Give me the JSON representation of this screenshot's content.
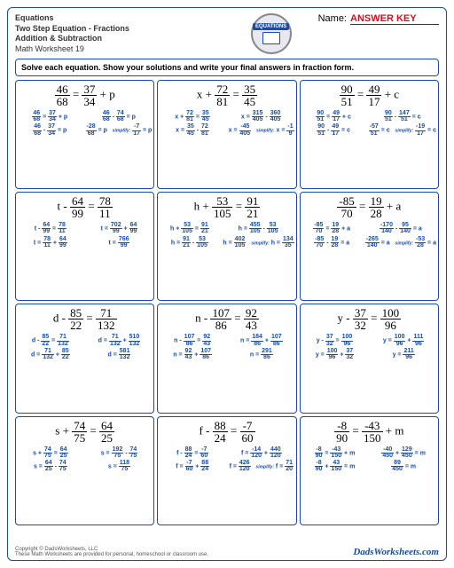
{
  "header": {
    "line1": "Equations",
    "line2": "Two Step Equation - Fractions",
    "line3": "Addition & Subtraction",
    "line4": "Math Worksheet 19",
    "logo_text": "EQUATIONS",
    "name_label": "Name:",
    "answer_key": "ANSWER KEY"
  },
  "instruction": "Solve each equation.  Show your solutions and write your final answers in fraction form.",
  "cells": [
    {
      "prob_html": "<span class='frac'><span class='n'>46</span><span class='d'>68</span></span> = <span class='frac'><span class='n'>37</span><span class='d'>34</span></span> + p",
      "steps": [
        "<span class='sfrac'><span class='n'>46</span><span class='d'>68</span></span> = <span class='sfrac'><span class='n'>37</span><span class='d'>34</span></span> + p",
        "<span class='sfrac'><span class='n'>46</span><span class='d'>68</span></span> - <span class='sfrac'><span class='n'>74</span><span class='d'>68</span></span> = p",
        "<span class='sfrac'><span class='n'>46</span><span class='d'>68</span></span> - <span class='sfrac'><span class='n'>37</span><span class='d'>34</span></span> = p",
        "<span class='sfrac'><span class='n'>-28</span><span class='d'>68</span></span> = p &nbsp; <span class='simplify'>simplify:</span> <span class='sfrac'><span class='n'>-7</span><span class='d'>17</span></span> = p"
      ]
    },
    {
      "prob_html": "x + <span class='frac'><span class='n'>72</span><span class='d'>81</span></span> = <span class='frac'><span class='n'>35</span><span class='d'>45</span></span>",
      "steps": [
        "x + <span class='sfrac'><span class='n'>72</span><span class='d'>81</span></span> = <span class='sfrac'><span class='n'>35</span><span class='d'>45</span></span>",
        "x = <span class='sfrac'><span class='n'>315</span><span class='d'>405</span></span> - <span class='sfrac'><span class='n'>360</span><span class='d'>405</span></span>",
        "x = <span class='sfrac'><span class='n'>35</span><span class='d'>45</span></span> - <span class='sfrac'><span class='n'>72</span><span class='d'>81</span></span>",
        "x = <span class='sfrac'><span class='n'>-45</span><span class='d'>405</span></span> &nbsp; <span class='simplify'>simplify:</span> x = <span class='sfrac'><span class='n'>-1</span><span class='d'>9</span></span>"
      ]
    },
    {
      "prob_html": "<span class='frac'><span class='n'>90</span><span class='d'>51</span></span> = <span class='frac'><span class='n'>49</span><span class='d'>17</span></span> + c",
      "steps": [
        "<span class='sfrac'><span class='n'>90</span><span class='d'>51</span></span> = <span class='sfrac'><span class='n'>49</span><span class='d'>17</span></span> + c",
        "<span class='sfrac'><span class='n'>90</span><span class='d'>51</span></span> - <span class='sfrac'><span class='n'>147</span><span class='d'>51</span></span> = c",
        "<span class='sfrac'><span class='n'>90</span><span class='d'>51</span></span> - <span class='sfrac'><span class='n'>49</span><span class='d'>17</span></span> = c",
        "<span class='sfrac'><span class='n'>-57</span><span class='d'>51</span></span> = c &nbsp; <span class='simplify'>simplify:</span> <span class='sfrac'><span class='n'>-19</span><span class='d'>17</span></span> = c"
      ]
    },
    {
      "prob_html": "t - <span class='frac'><span class='n'>64</span><span class='d'>99</span></span> = <span class='frac'><span class='n'>78</span><span class='d'>11</span></span>",
      "steps": [
        "t - <span class='sfrac'><span class='n'>64</span><span class='d'>99</span></span> = <span class='sfrac'><span class='n'>78</span><span class='d'>11</span></span>",
        "t = <span class='sfrac'><span class='n'>702</span><span class='d'>99</span></span> + <span class='sfrac'><span class='n'>64</span><span class='d'>99</span></span>",
        "t = <span class='sfrac'><span class='n'>78</span><span class='d'>11</span></span> + <span class='sfrac'><span class='n'>64</span><span class='d'>99</span></span>",
        "t = <span class='sfrac'><span class='n'>766</span><span class='d'>99</span></span>"
      ]
    },
    {
      "prob_html": "h + <span class='frac'><span class='n'>53</span><span class='d'>105</span></span> = <span class='frac'><span class='n'>91</span><span class='d'>21</span></span>",
      "steps": [
        "h + <span class='sfrac'><span class='n'>53</span><span class='d'>105</span></span> = <span class='sfrac'><span class='n'>91</span><span class='d'>21</span></span>",
        "h = <span class='sfrac'><span class='n'>455</span><span class='d'>105</span></span> - <span class='sfrac'><span class='n'>53</span><span class='d'>105</span></span>",
        "h = <span class='sfrac'><span class='n'>91</span><span class='d'>21</span></span> - <span class='sfrac'><span class='n'>53</span><span class='d'>105</span></span>",
        "h = <span class='sfrac'><span class='n'>402</span><span class='d'>105</span></span> &nbsp; <span class='simplify'>simplify:</span> h = <span class='sfrac'><span class='n'>134</span><span class='d'>35</span></span>"
      ]
    },
    {
      "prob_html": "<span class='frac'><span class='n'>-85</span><span class='d'>70</span></span> = <span class='frac'><span class='n'>19</span><span class='d'>28</span></span> + a",
      "steps": [
        "<span class='sfrac'><span class='n'>-85</span><span class='d'>70</span></span> = <span class='sfrac'><span class='n'>19</span><span class='d'>28</span></span> + a",
        "<span class='sfrac'><span class='n'>-170</span><span class='d'>140</span></span> - <span class='sfrac'><span class='n'>95</span><span class='d'>140</span></span> = a",
        "<span class='sfrac'><span class='n'>-85</span><span class='d'>70</span></span> - <span class='sfrac'><span class='n'>19</span><span class='d'>28</span></span> = a",
        "<span class='sfrac'><span class='n'>-265</span><span class='d'>140</span></span> = a &nbsp; <span class='simplify'>simplify:</span> <span class='sfrac'><span class='n'>-53</span><span class='d'>28</span></span> = a"
      ]
    },
    {
      "prob_html": "d - <span class='frac'><span class='n'>85</span><span class='d'>22</span></span> = <span class='frac'><span class='n'>71</span><span class='d'>132</span></span>",
      "steps": [
        "d - <span class='sfrac'><span class='n'>85</span><span class='d'>22</span></span> = <span class='sfrac'><span class='n'>71</span><span class='d'>132</span></span>",
        "d = <span class='sfrac'><span class='n'>71</span><span class='d'>132</span></span> + <span class='sfrac'><span class='n'>510</span><span class='d'>132</span></span>",
        "d = <span class='sfrac'><span class='n'>71</span><span class='d'>132</span></span> + <span class='sfrac'><span class='n'>85</span><span class='d'>22</span></span>",
        "d = <span class='sfrac'><span class='n'>581</span><span class='d'>132</span></span>"
      ]
    },
    {
      "prob_html": "n - <span class='frac'><span class='n'>107</span><span class='d'>86</span></span> = <span class='frac'><span class='n'>92</span><span class='d'>43</span></span>",
      "steps": [
        "n - <span class='sfrac'><span class='n'>107</span><span class='d'>86</span></span> = <span class='sfrac'><span class='n'>92</span><span class='d'>43</span></span>",
        "n = <span class='sfrac'><span class='n'>184</span><span class='d'>86</span></span> + <span class='sfrac'><span class='n'>107</span><span class='d'>86</span></span>",
        "n = <span class='sfrac'><span class='n'>92</span><span class='d'>43</span></span> + <span class='sfrac'><span class='n'>107</span><span class='d'>86</span></span>",
        "n = <span class='sfrac'><span class='n'>291</span><span class='d'>86</span></span>"
      ]
    },
    {
      "prob_html": "y - <span class='frac'><span class='n'>37</span><span class='d'>32</span></span> = <span class='frac'><span class='n'>100</span><span class='d'>96</span></span>",
      "steps": [
        "y - <span class='sfrac'><span class='n'>37</span><span class='d'>32</span></span> = <span class='sfrac'><span class='n'>100</span><span class='d'>96</span></span>",
        "y = <span class='sfrac'><span class='n'>100</span><span class='d'>96</span></span> + <span class='sfrac'><span class='n'>111</span><span class='d'>96</span></span>",
        "y = <span class='sfrac'><span class='n'>100</span><span class='d'>96</span></span> + <span class='sfrac'><span class='n'>37</span><span class='d'>32</span></span>",
        "y = <span class='sfrac'><span class='n'>211</span><span class='d'>96</span></span>"
      ]
    },
    {
      "prob_html": "s + <span class='frac'><span class='n'>74</span><span class='d'>75</span></span> = <span class='frac'><span class='n'>64</span><span class='d'>25</span></span>",
      "steps": [
        "s + <span class='sfrac'><span class='n'>74</span><span class='d'>75</span></span> = <span class='sfrac'><span class='n'>64</span><span class='d'>25</span></span>",
        "s = <span class='sfrac'><span class='n'>192</span><span class='d'>75</span></span> - <span class='sfrac'><span class='n'>74</span><span class='d'>75</span></span>",
        "s = <span class='sfrac'><span class='n'>64</span><span class='d'>25</span></span> - <span class='sfrac'><span class='n'>74</span><span class='d'>75</span></span>",
        "s = <span class='sfrac'><span class='n'>118</span><span class='d'>75</span></span>"
      ]
    },
    {
      "prob_html": "f - <span class='frac'><span class='n'>88</span><span class='d'>24</span></span> = <span class='frac'><span class='n'>-7</span><span class='d'>60</span></span>",
      "steps": [
        "f - <span class='sfrac'><span class='n'>88</span><span class='d'>24</span></span> = <span class='sfrac'><span class='n'>-7</span><span class='d'>60</span></span>",
        "f = <span class='sfrac'><span class='n'>-14</span><span class='d'>120</span></span> + <span class='sfrac'><span class='n'>440</span><span class='d'>120</span></span>",
        "f = <span class='sfrac'><span class='n'>-7</span><span class='d'>60</span></span> + <span class='sfrac'><span class='n'>88</span><span class='d'>24</span></span>",
        "f = <span class='sfrac'><span class='n'>426</span><span class='d'>120</span></span> &nbsp; <span class='simplify'>simplify:</span> f = <span class='sfrac'><span class='n'>71</span><span class='d'>20</span></span>"
      ]
    },
    {
      "prob_html": "<span class='frac'><span class='n'>-8</span><span class='d'>90</span></span> = <span class='frac'><span class='n'>-43</span><span class='d'>150</span></span> + m",
      "steps": [
        "<span class='sfrac'><span class='n'>-8</span><span class='d'>90</span></span> = <span class='sfrac'><span class='n'>-43</span><span class='d'>150</span></span> + m",
        "<span class='sfrac'><span class='n'>-40</span><span class='d'>450</span></span> + <span class='sfrac'><span class='n'>129</span><span class='d'>450</span></span> = m",
        "<span class='sfrac'><span class='n'>-8</span><span class='d'>90</span></span> + <span class='sfrac'><span class='n'>43</span><span class='d'>150</span></span> = m",
        "<span class='sfrac'><span class='n'>89</span><span class='d'>450</span></span> = m"
      ]
    }
  ],
  "footer": {
    "copyright": "Copyright © DadsWorksheets, LLC",
    "note": "These Math Worksheets are provided for personal, homeschool or classroom use.",
    "brand": "DadsWorksheets.com"
  }
}
